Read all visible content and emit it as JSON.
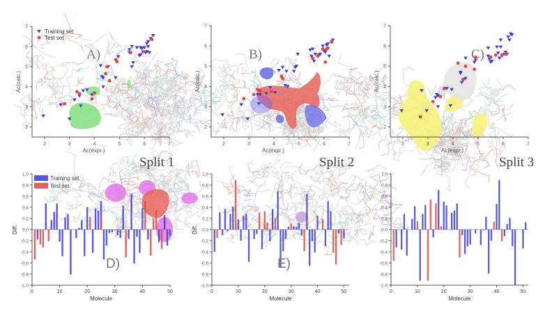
{
  "figure": {
    "split_titles": [
      "Split 1",
      "Split 2",
      "Split 3"
    ],
    "colors": {
      "training": "#3a3ae0",
      "test": "#e0453d",
      "axis": "#555555",
      "panel_label": "#777777",
      "mol_gray": "#c8c8c8",
      "mol_red": "#e88a8a",
      "mol_blue": "#9a9ae6",
      "mol_green": "#7fe0b8",
      "field_green": "#7fe07a",
      "field_red": "#e8655e",
      "field_blue": "#6a6ae8",
      "field_magenta": "#e070e8",
      "field_yellow": "#f6f27a",
      "field_white": "#e4e4e4"
    }
  },
  "chart_data": [
    {
      "id": "A",
      "panel_label": "A)",
      "type": "scatter",
      "xlabel": "Ac(expr.)",
      "ylabel": "Ac(calc.)",
      "xlim": [
        1.5,
        7
      ],
      "ylim": [
        1.5,
        7
      ],
      "xticks": [
        "2",
        "3",
        "4",
        "5",
        "6",
        "7"
      ],
      "yticks": [
        "2",
        "3",
        "4",
        "5",
        "6",
        "7"
      ],
      "legend": {
        "position": "top-left",
        "entries": [
          "Training set",
          "Test set"
        ]
      },
      "series": [
        {
          "name": "Training set",
          "marker": "triangle-down",
          "points": [
            [
              1.95,
              2.55
            ],
            [
              2.65,
              3.1
            ],
            [
              3.0,
              2.4
            ],
            [
              3.2,
              3.35
            ],
            [
              3.4,
              3.55
            ],
            [
              3.45,
              3.05
            ],
            [
              3.55,
              3.8
            ],
            [
              3.7,
              3.85
            ],
            [
              3.9,
              3.6
            ],
            [
              4.25,
              5.05
            ],
            [
              4.3,
              4.5
            ],
            [
              4.35,
              4.45
            ],
            [
              4.35,
              4.0
            ],
            [
              4.55,
              5.0
            ],
            [
              4.85,
              4.45
            ],
            [
              4.95,
              5.5
            ],
            [
              5.4,
              5.7
            ],
            [
              5.4,
              5.85
            ],
            [
              5.5,
              5.0
            ],
            [
              5.5,
              6.0
            ],
            [
              5.55,
              5.2
            ],
            [
              5.7,
              5.95
            ],
            [
              5.8,
              5.55
            ],
            [
              5.85,
              5.6
            ],
            [
              5.85,
              5.95
            ],
            [
              5.9,
              5.9
            ],
            [
              6.0,
              5.95
            ],
            [
              6.05,
              5.7
            ],
            [
              6.1,
              5.75
            ],
            [
              6.1,
              6.15
            ],
            [
              6.15,
              6.0
            ],
            [
              6.15,
              6.25
            ],
            [
              6.2,
              5.7
            ],
            [
              6.25,
              6.4
            ],
            [
              6.35,
              6.55
            ]
          ]
        },
        {
          "name": "Test set",
          "marker": "circle",
          "points": [
            [
              2.8,
              3.15
            ],
            [
              3.3,
              3.75
            ],
            [
              3.4,
              3.65
            ],
            [
              3.9,
              3.4
            ],
            [
              4.0,
              3.7
            ],
            [
              4.45,
              4.65
            ],
            [
              4.5,
              5.0
            ],
            [
              4.6,
              4.3
            ],
            [
              4.85,
              5.35
            ],
            [
              4.9,
              5.25
            ],
            [
              5.45,
              5.7
            ],
            [
              5.95,
              5.75
            ],
            [
              6.3,
              6.35
            ]
          ]
        }
      ]
    },
    {
      "id": "B",
      "panel_label": "B)",
      "type": "scatter",
      "xlabel": "Ac(expr.)",
      "ylabel": "Ac(calc.)",
      "xlim": [
        1.5,
        7
      ],
      "ylim": [
        1.5,
        7
      ],
      "xticks": [
        "2",
        "3",
        "4",
        "5",
        "6",
        "7"
      ],
      "yticks": [
        "2",
        "3",
        "4",
        "5",
        "6",
        "7"
      ],
      "series": [
        {
          "name": "Training set",
          "marker": "triangle-down",
          "points": [
            [
              1.95,
              2.6
            ],
            [
              2.7,
              3.1
            ],
            [
              2.95,
              2.4
            ],
            [
              3.35,
              3.6
            ],
            [
              3.45,
              3.6
            ],
            [
              3.4,
              3.15
            ],
            [
              3.7,
              3.65
            ],
            [
              3.85,
              3.95
            ],
            [
              4.05,
              3.7
            ],
            [
              4.2,
              4.8
            ],
            [
              4.35,
              4.95
            ],
            [
              4.5,
              4.75
            ],
            [
              4.45,
              4.05
            ],
            [
              4.55,
              4.0
            ],
            [
              4.8,
              4.75
            ],
            [
              4.85,
              4.95
            ],
            [
              4.9,
              5.0
            ],
            [
              4.95,
              5.6
            ],
            [
              5.45,
              5.8
            ],
            [
              5.5,
              5.5
            ],
            [
              5.55,
              5.85
            ],
            [
              5.6,
              5.25
            ],
            [
              5.65,
              5.6
            ],
            [
              5.75,
              5.5
            ],
            [
              5.8,
              5.55
            ],
            [
              5.85,
              5.6
            ],
            [
              5.95,
              6.0
            ],
            [
              6.0,
              5.75
            ],
            [
              6.05,
              5.7
            ],
            [
              6.1,
              6.05
            ],
            [
              6.15,
              6.1
            ],
            [
              6.2,
              5.5
            ],
            [
              6.3,
              6.2
            ],
            [
              6.35,
              6.3
            ]
          ]
        },
        {
          "name": "Test set",
          "marker": "circle",
          "points": [
            [
              2.8,
              3.4
            ],
            [
              3.2,
              3.6
            ],
            [
              3.35,
              3.85
            ],
            [
              3.45,
              3.8
            ],
            [
              3.9,
              3.75
            ],
            [
              4.3,
              4.5
            ],
            [
              4.35,
              4.4
            ],
            [
              5.55,
              5.4
            ],
            [
              5.75,
              5.5
            ],
            [
              5.95,
              5.85
            ],
            [
              6.05,
              5.2
            ],
            [
              6.1,
              5.85
            ],
            [
              6.15,
              5.9
            ],
            [
              6.3,
              6.2
            ]
          ]
        }
      ]
    },
    {
      "id": "C",
      "panel_label": "C)",
      "type": "scatter",
      "xlabel": "Ac(expr.)",
      "ylabel": "Ac(calc.)",
      "xlim": [
        1.5,
        7
      ],
      "ylim": [
        1.5,
        7
      ],
      "xticks": [
        "2",
        "3",
        "4",
        "5",
        "6",
        "7"
      ],
      "yticks": [
        "2",
        "3",
        "4",
        "5",
        "6",
        "7"
      ],
      "series": [
        {
          "name": "Training set",
          "marker": "triangle-down",
          "points": [
            [
              1.95,
              2.8
            ],
            [
              2.75,
              3.8
            ],
            [
              2.95,
              2.8
            ],
            [
              3.3,
              3.45
            ],
            [
              3.35,
              3.6
            ],
            [
              3.4,
              3.55
            ],
            [
              3.4,
              3.0
            ],
            [
              3.75,
              3.9
            ],
            [
              3.9,
              3.05
            ],
            [
              3.95,
              3.85
            ],
            [
              4.3,
              4.65
            ],
            [
              4.3,
              4.7
            ],
            [
              4.35,
              4.2
            ],
            [
              4.4,
              4.3
            ],
            [
              4.5,
              4.4
            ],
            [
              4.5,
              5.4
            ],
            [
              4.85,
              5.2
            ],
            [
              4.9,
              5.3
            ],
            [
              5.4,
              5.9
            ],
            [
              5.4,
              5.5
            ],
            [
              5.45,
              5.35
            ],
            [
              5.5,
              5.2
            ],
            [
              5.55,
              5.25
            ],
            [
              5.75,
              5.95
            ],
            [
              5.8,
              5.65
            ],
            [
              5.85,
              5.4
            ],
            [
              5.9,
              5.95
            ],
            [
              5.9,
              6.3
            ],
            [
              5.95,
              5.5
            ],
            [
              6.05,
              5.6
            ],
            [
              6.1,
              5.7
            ],
            [
              6.15,
              5.6
            ],
            [
              6.2,
              6.45
            ],
            [
              6.25,
              6.3
            ],
            [
              6.3,
              6.6
            ],
            [
              6.35,
              6.55
            ]
          ]
        },
        {
          "name": "Test set",
          "marker": "circle",
          "points": [
            [
              2.7,
              2.5
            ],
            [
              3.2,
              3.25
            ],
            [
              3.5,
              3.5
            ],
            [
              3.65,
              3.9
            ],
            [
              4.2,
              5.15
            ],
            [
              4.4,
              4.35
            ],
            [
              4.5,
              5.0
            ],
            [
              4.85,
              4.85
            ],
            [
              4.9,
              5.45
            ],
            [
              5.5,
              5.45
            ],
            [
              5.7,
              5.55
            ],
            [
              5.95,
              5.55
            ],
            [
              6.1,
              5.6
            ]
          ]
        }
      ]
    },
    {
      "id": "D",
      "panel_label": "D)",
      "type": "bar",
      "xlabel": "Molecule",
      "ylabel": "Diff.",
      "xlim": [
        0,
        50
      ],
      "ylim": [
        -1.0,
        1.0
      ],
      "xticks": [
        "0",
        "10",
        "20",
        "30",
        "40",
        "50"
      ],
      "yticks": [
        "-1.0",
        "-0.8",
        "-0.6",
        "-0.4",
        "-0.2",
        "0.0",
        "0.2",
        "0.4",
        "0.6",
        "0.8",
        "1.0"
      ],
      "legend": {
        "position": "top-left",
        "entries": [
          "Training set",
          "Test set"
        ]
      },
      "series": [
        {
          "name": "Training set",
          "x": [
            2,
            5,
            7,
            8,
            9,
            10,
            11,
            12,
            13,
            14,
            16,
            17,
            18,
            19,
            20,
            22,
            23,
            24,
            25,
            26,
            27,
            28,
            29,
            31,
            32,
            33,
            35,
            36,
            37,
            38,
            39,
            40,
            42,
            46,
            48,
            49,
            50
          ],
          "values": [
            -0.18,
            0.47,
            0.17,
            0.32,
            0.47,
            -0.22,
            -0.48,
            0.22,
            0.28,
            -0.81,
            -0.15,
            0.03,
            0.17,
            -0.48,
            0.4,
            -0.42,
            0.38,
            0.34,
            0.51,
            -0.54,
            -0.29,
            -0.06,
            -0.05,
            -0.1,
            -0.15,
            0.43,
            -0.17,
            0.64,
            -0.61,
            -0.13,
            -0.42,
            0.39,
            -0.18,
            -0.23,
            0.26,
            -0.29,
            -0.11
          ]
        },
        {
          "name": "Test set",
          "x": [
            1,
            3,
            4,
            6,
            21,
            25,
            30,
            34,
            41,
            43,
            44,
            45,
            47
          ],
          "values": [
            -0.54,
            -0.27,
            -0.32,
            -0.21,
            0.23,
            0.2,
            -0.02,
            -0.5,
            0.51,
            -0.47,
            0.21,
            0.34,
            -0.35
          ]
        }
      ]
    },
    {
      "id": "E",
      "panel_label": "E)",
      "type": "bar",
      "xlabel": "Molecule",
      "ylabel": "Diff.",
      "xlim": [
        0,
        52
      ],
      "ylim": [
        -1.0,
        1.0
      ],
      "xticks": [
        "0",
        "10",
        "20",
        "30",
        "40",
        "50"
      ],
      "yticks": [
        "-1.0",
        "-0.8",
        "-0.6",
        "-0.4",
        "-0.2",
        "0.0",
        "0.2",
        "0.4",
        "0.6",
        "0.8",
        "1.0"
      ],
      "series": [
        {
          "name": "Training set",
          "x": [
            1,
            3,
            4,
            5,
            6,
            7,
            8,
            10,
            11,
            12,
            13,
            14,
            16,
            17,
            19,
            22,
            23,
            25,
            26,
            27,
            28,
            29,
            31,
            32,
            33,
            34,
            36,
            37,
            38,
            39,
            40,
            43,
            44,
            45,
            48,
            50
          ],
          "values": [
            -0.4,
            0.31,
            -0.1,
            0.37,
            -0.03,
            0.28,
            0.41,
            0.18,
            -0.2,
            0.25,
            0.28,
            -0.58,
            -0.17,
            -0.08,
            -0.35,
            -0.21,
            0.37,
            0.69,
            -0.67,
            -0.39,
            -0.17,
            0.05,
            0.06,
            0.05,
            0.12,
            -0.11,
            0.64,
            -0.65,
            -0.21,
            -0.41,
            0.25,
            -0.3,
            0.51,
            0.33,
            -0.07,
            -0.16
          ]
        },
        {
          "name": "Test set",
          "x": [
            2,
            9,
            18,
            20,
            21,
            24,
            30,
            35,
            42,
            46,
            47,
            49
          ],
          "values": [
            -0.15,
            0.89,
            0.3,
            0.33,
            0.13,
            0.2,
            0.11,
            -0.39,
            0.19,
            -0.42,
            -0.63,
            -0.28
          ]
        }
      ]
    },
    {
      "id": "F",
      "panel_label": "",
      "type": "bar",
      "xlabel": "Molecule",
      "ylabel": "",
      "xlim": [
        0,
        52
      ],
      "ylim": [
        -1.0,
        1.0
      ],
      "xticks": [
        "0",
        "10",
        "20",
        "30",
        "40",
        "50"
      ],
      "yticks": [
        "-1.0",
        "-0.8",
        "-0.6",
        "-0.4",
        "-0.2",
        "0.0",
        "0.2",
        "0.4",
        "0.6",
        "0.8",
        "1.0"
      ],
      "series": [
        {
          "name": "Training set",
          "x": [
            2,
            4,
            5,
            6,
            8,
            9,
            11,
            12,
            13,
            16,
            18,
            20,
            21,
            23,
            24,
            25,
            27,
            28,
            29,
            30,
            32,
            34,
            36,
            37,
            38,
            40,
            41,
            43,
            44,
            45,
            46,
            47,
            50,
            51
          ],
          "values": [
            -0.32,
            -0.36,
            0.28,
            -0.47,
            0.19,
            0.42,
            -0.92,
            0.28,
            0.44,
            -0.14,
            0.71,
            0.5,
            0.43,
            0.3,
            0.34,
            0.47,
            -0.1,
            -0.44,
            -0.3,
            -0.27,
            -0.07,
            -0.28,
            0.23,
            -0.79,
            -0.2,
            0.46,
            0.89,
            -0.12,
            0.1,
            0.21,
            -0.3,
            -1.0,
            -0.34,
            0.13
          ]
        },
        {
          "name": "Test set",
          "x": [
            1,
            10,
            14,
            15,
            17,
            19,
            26,
            35,
            39,
            42
          ],
          "values": [
            -0.56,
            0.15,
            -0.92,
            0.54,
            0.47,
            0.06,
            -0.5,
            -0.02,
            0.14,
            -0.21
          ]
        }
      ]
    }
  ]
}
